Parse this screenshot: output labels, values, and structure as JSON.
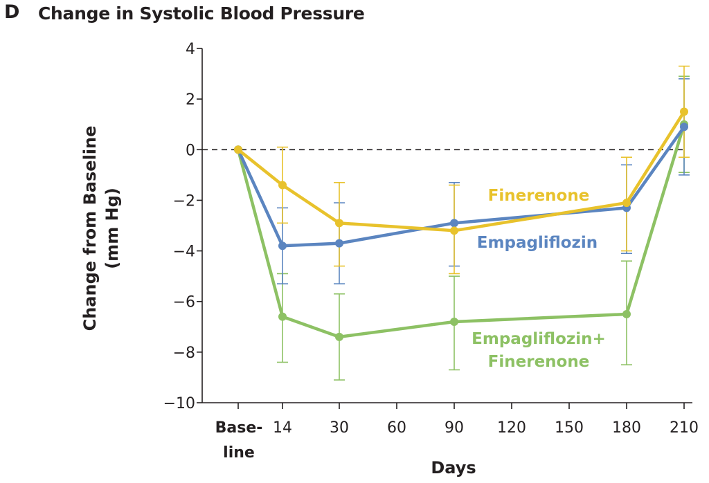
{
  "panel_letter": "D",
  "chart_data": {
    "type": "line",
    "title": "Change in Systolic Blood Pressure",
    "xlabel": "Days",
    "ylabel_lines": [
      "Change from Baseline",
      "(mm Hg)"
    ],
    "x_ticks": [
      {
        "x": 14,
        "label": "14"
      },
      {
        "x": 30,
        "label": "30"
      },
      {
        "x": 60,
        "label": "60"
      },
      {
        "x": 90,
        "label": "90"
      },
      {
        "x": 120,
        "label": "120"
      },
      {
        "x": 150,
        "label": "150"
      },
      {
        "x": 180,
        "label": "180"
      },
      {
        "x": 210,
        "label": "210"
      }
    ],
    "x_baseline_label": [
      "Base-",
      "line"
    ],
    "y_ticks": [
      {
        "y": 4,
        "label": "4"
      },
      {
        "y": 2,
        "label": "2"
      },
      {
        "y": 0,
        "label": "0"
      },
      {
        "y": -2,
        "label": "−2"
      },
      {
        "y": -4,
        "label": "−4"
      },
      {
        "y": -6,
        "label": "−6"
      },
      {
        "y": -8,
        "label": "−8"
      },
      {
        "y": -10,
        "label": "−10"
      }
    ],
    "ylim": [
      -10,
      4
    ],
    "reference_line": 0,
    "grid": false,
    "series": [
      {
        "name": "Empagliflozin+ Finerenone",
        "label_lines": [
          "Empagliflozin+",
          "Finerenone"
        ],
        "color": "#8dc164",
        "points": [
          {
            "x": "Baseline",
            "y": 0.0,
            "lo": 0.0,
            "hi": 0.0
          },
          {
            "x": 14,
            "y": -6.6,
            "lo": -8.4,
            "hi": -4.9
          },
          {
            "x": 30,
            "y": -7.4,
            "lo": -9.1,
            "hi": -5.7
          },
          {
            "x": 90,
            "y": -6.8,
            "lo": -8.7,
            "hi": -5.0
          },
          {
            "x": 180,
            "y": -6.5,
            "lo": -8.5,
            "hi": -4.4
          },
          {
            "x": 210,
            "y": 1.0,
            "lo": -0.9,
            "hi": 2.9
          }
        ]
      },
      {
        "name": "Empagliflozin",
        "label_lines": [
          "Empagliflozin"
        ],
        "color": "#5b85c0",
        "points": [
          {
            "x": "Baseline",
            "y": 0.0,
            "lo": 0.0,
            "hi": 0.0
          },
          {
            "x": 14,
            "y": -3.8,
            "lo": -5.3,
            "hi": -2.3
          },
          {
            "x": 30,
            "y": -3.7,
            "lo": -5.3,
            "hi": -2.1
          },
          {
            "x": 90,
            "y": -2.9,
            "lo": -4.6,
            "hi": -1.3
          },
          {
            "x": 180,
            "y": -2.3,
            "lo": -4.1,
            "hi": -0.6
          },
          {
            "x": 210,
            "y": 0.9,
            "lo": -1.0,
            "hi": 2.8
          }
        ]
      },
      {
        "name": "Finerenone",
        "label_lines": [
          "Finerenone"
        ],
        "color": "#e8c22c",
        "points": [
          {
            "x": "Baseline",
            "y": 0.0,
            "lo": 0.0,
            "hi": 0.0
          },
          {
            "x": 14,
            "y": -1.4,
            "lo": -2.9,
            "hi": 0.1
          },
          {
            "x": 30,
            "y": -2.9,
            "lo": -4.6,
            "hi": -1.3
          },
          {
            "x": 90,
            "y": -3.2,
            "lo": -4.9,
            "hi": -1.4
          },
          {
            "x": 180,
            "y": -2.1,
            "lo": -4.0,
            "hi": -0.3
          },
          {
            "x": 210,
            "y": 1.5,
            "lo": -0.3,
            "hi": 3.3
          }
        ]
      }
    ]
  }
}
